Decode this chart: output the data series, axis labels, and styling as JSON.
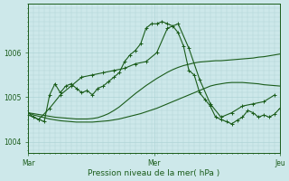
{
  "background_color": "#cde8ea",
  "plot_bg_color": "#cde8ea",
  "grid_color": "#afd4d6",
  "line_color": "#1a5c1a",
  "title": "Pression niveau de la mer( hPa )",
  "xlabel_mar": "Mar",
  "xlabel_mer": "Mer",
  "xlabel_jeu": "Jeu",
  "ylim": [
    1003.75,
    1007.1
  ],
  "yticks": [
    1004,
    1005,
    1006
  ],
  "n_points": 48,
  "smooth1_y": [
    1004.65,
    1004.6,
    1004.57,
    1004.54,
    1004.51,
    1004.49,
    1004.47,
    1004.46,
    1004.45,
    1004.44,
    1004.44,
    1004.44,
    1004.44,
    1004.45,
    1004.46,
    1004.47,
    1004.49,
    1004.51,
    1004.54,
    1004.57,
    1004.6,
    1004.63,
    1004.67,
    1004.71,
    1004.75,
    1004.8,
    1004.85,
    1004.9,
    1004.95,
    1005.0,
    1005.05,
    1005.1,
    1005.15,
    1005.2,
    1005.25,
    1005.28,
    1005.3,
    1005.32,
    1005.33,
    1005.33,
    1005.33,
    1005.32,
    1005.31,
    1005.3,
    1005.28,
    1005.27,
    1005.26,
    1005.25
  ],
  "smooth2_y": [
    1004.65,
    1004.63,
    1004.61,
    1004.59,
    1004.57,
    1004.55,
    1004.54,
    1004.53,
    1004.52,
    1004.51,
    1004.51,
    1004.51,
    1004.52,
    1004.54,
    1004.58,
    1004.63,
    1004.7,
    1004.78,
    1004.88,
    1004.98,
    1005.08,
    1005.17,
    1005.26,
    1005.34,
    1005.42,
    1005.49,
    1005.56,
    1005.62,
    1005.67,
    1005.71,
    1005.74,
    1005.77,
    1005.79,
    1005.8,
    1005.81,
    1005.82,
    1005.82,
    1005.83,
    1005.84,
    1005.85,
    1005.86,
    1005.87,
    1005.88,
    1005.9,
    1005.91,
    1005.93,
    1005.95,
    1005.97
  ],
  "jagged1_x": [
    0,
    1,
    2,
    3,
    4,
    5,
    6,
    7,
    8,
    9,
    10,
    11,
    12,
    13,
    14,
    15,
    16,
    17,
    18,
    19,
    20,
    21,
    22,
    23,
    24,
    25,
    26,
    27,
    28,
    29,
    30,
    31,
    32,
    33,
    34,
    35,
    36,
    37,
    38,
    39,
    40,
    41,
    42,
    43,
    44,
    45,
    46,
    47
  ],
  "jagged1_y": [
    1004.65,
    1004.55,
    1004.5,
    1004.45,
    1005.05,
    1005.3,
    1005.1,
    1005.25,
    1005.3,
    1005.2,
    1005.1,
    1005.15,
    1005.05,
    1005.2,
    1005.25,
    1005.35,
    1005.45,
    1005.55,
    1005.8,
    1005.95,
    1006.05,
    1006.2,
    1006.55,
    1006.65,
    1006.65,
    1006.7,
    1006.65,
    1006.6,
    1006.45,
    1006.15,
    1005.6,
    1005.5,
    1005.1,
    1004.95,
    1004.8,
    1004.55,
    1004.5,
    1004.45,
    1004.4,
    1004.48,
    1004.55,
    1004.7,
    1004.65,
    1004.55,
    1004.6,
    1004.55,
    1004.62,
    1004.75
  ],
  "jagged2_x": [
    0,
    2,
    4,
    6,
    8,
    10,
    12,
    14,
    16,
    18,
    20,
    22,
    24,
    26,
    28,
    30,
    32,
    34,
    36,
    38,
    40,
    42,
    44,
    46
  ],
  "jagged2_y": [
    1004.6,
    1004.5,
    1004.75,
    1005.05,
    1005.25,
    1005.45,
    1005.5,
    1005.55,
    1005.6,
    1005.65,
    1005.75,
    1005.8,
    1006.0,
    1006.55,
    1006.65,
    1006.1,
    1005.4,
    1004.85,
    1004.55,
    1004.65,
    1004.8,
    1004.85,
    1004.9,
    1005.05
  ]
}
